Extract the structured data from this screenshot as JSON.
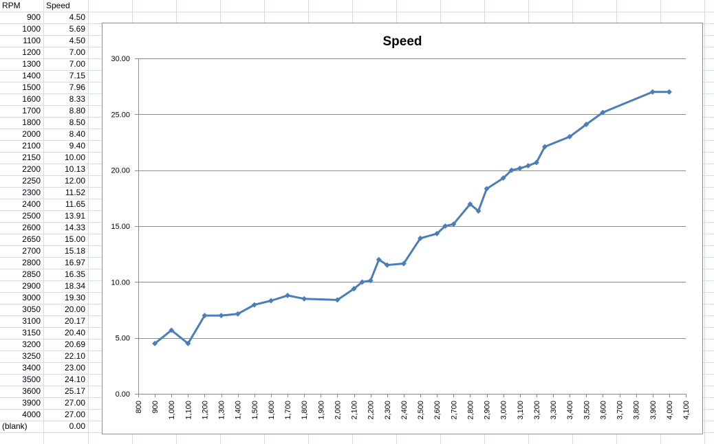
{
  "sheet": {
    "header": {
      "col_a": "RPM",
      "col_b": "Speed"
    },
    "rows": [
      {
        "rpm": "900",
        "speed": "4.50"
      },
      {
        "rpm": "1000",
        "speed": "5.69"
      },
      {
        "rpm": "1100",
        "speed": "4.50"
      },
      {
        "rpm": "1200",
        "speed": "7.00"
      },
      {
        "rpm": "1300",
        "speed": "7.00"
      },
      {
        "rpm": "1400",
        "speed": "7.15"
      },
      {
        "rpm": "1500",
        "speed": "7.96"
      },
      {
        "rpm": "1600",
        "speed": "8.33"
      },
      {
        "rpm": "1700",
        "speed": "8.80"
      },
      {
        "rpm": "1800",
        "speed": "8.50"
      },
      {
        "rpm": "2000",
        "speed": "8.40"
      },
      {
        "rpm": "2100",
        "speed": "9.40"
      },
      {
        "rpm": "2150",
        "speed": "10.00"
      },
      {
        "rpm": "2200",
        "speed": "10.13"
      },
      {
        "rpm": "2250",
        "speed": "12.00"
      },
      {
        "rpm": "2300",
        "speed": "11.52"
      },
      {
        "rpm": "2400",
        "speed": "11.65"
      },
      {
        "rpm": "2500",
        "speed": "13.91"
      },
      {
        "rpm": "2600",
        "speed": "14.33"
      },
      {
        "rpm": "2650",
        "speed": "15.00"
      },
      {
        "rpm": "2700",
        "speed": "15.18"
      },
      {
        "rpm": "2800",
        "speed": "16.97"
      },
      {
        "rpm": "2850",
        "speed": "16.35"
      },
      {
        "rpm": "2900",
        "speed": "18.34"
      },
      {
        "rpm": "3000",
        "speed": "19.30"
      },
      {
        "rpm": "3050",
        "speed": "20.00"
      },
      {
        "rpm": "3100",
        "speed": "20.17"
      },
      {
        "rpm": "3150",
        "speed": "20.40"
      },
      {
        "rpm": "3200",
        "speed": "20.69"
      },
      {
        "rpm": "3250",
        "speed": "22.10"
      },
      {
        "rpm": "3400",
        "speed": "23.00"
      },
      {
        "rpm": "3500",
        "speed": "24.10"
      },
      {
        "rpm": "3600",
        "speed": "25.17"
      },
      {
        "rpm": "3900",
        "speed": "27.00"
      },
      {
        "rpm": "4000",
        "speed": "27.00"
      },
      {
        "rpm": "(blank)",
        "speed": "0.00"
      }
    ]
  },
  "colors": {
    "series": "#4a7ebb",
    "gridline": "#8c8c8c",
    "sheet_grid": "#d4dcec",
    "chart_border": "#8c8c8c"
  },
  "chart_data": {
    "type": "scatter",
    "title": "Speed",
    "xlabel": "",
    "ylabel": "",
    "xlim": [
      800,
      4100
    ],
    "ylim": [
      0,
      30
    ],
    "x_ticks": [
      "800",
      "900",
      "1,000",
      "1,100",
      "1,200",
      "1,300",
      "1,400",
      "1,500",
      "1,600",
      "1,700",
      "1,800",
      "1,900",
      "2,000",
      "2,100",
      "2,200",
      "2,300",
      "2,400",
      "2,500",
      "2,600",
      "2,700",
      "2,800",
      "2,900",
      "3,000",
      "3,100",
      "3,200",
      "3,300",
      "3,400",
      "3,500",
      "3,600",
      "3,700",
      "3,800",
      "3,900",
      "4,000",
      "4,100"
    ],
    "y_ticks": [
      "0.00",
      "5.00",
      "10.00",
      "15.00",
      "20.00",
      "25.00",
      "30.00"
    ],
    "grid": "horizontal",
    "legend": "none",
    "series": [
      {
        "x": [
          900,
          1000,
          1100,
          1200,
          1300,
          1400,
          1500,
          1600,
          1700,
          1800,
          2000,
          2100,
          2150,
          2200,
          2250,
          2300,
          2400,
          2500,
          2600,
          2650,
          2700,
          2800,
          2850,
          2900,
          3000,
          3050,
          3100,
          3150,
          3200,
          3250,
          3400,
          3500,
          3600,
          3900,
          4000
        ],
        "y": [
          4.5,
          5.69,
          4.5,
          7.0,
          7.0,
          7.15,
          7.96,
          8.33,
          8.8,
          8.5,
          8.4,
          9.4,
          10.0,
          10.13,
          12.0,
          11.52,
          11.65,
          13.91,
          14.33,
          15.0,
          15.18,
          16.97,
          16.35,
          18.34,
          19.3,
          20.0,
          20.17,
          20.4,
          20.69,
          22.1,
          23.0,
          24.1,
          25.17,
          27.0,
          27.0
        ]
      }
    ]
  }
}
